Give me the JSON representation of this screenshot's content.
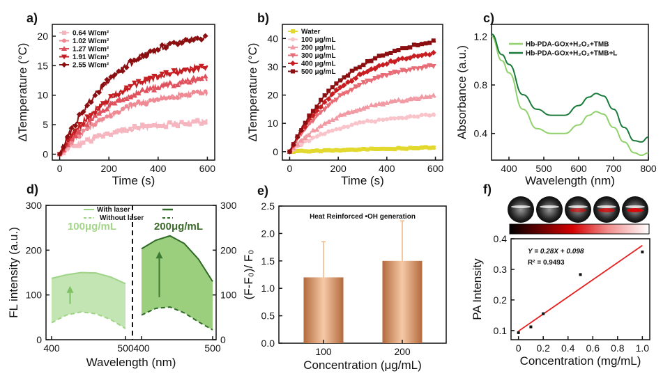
{
  "panels": {
    "a": {
      "label": "a)"
    },
    "b": {
      "label": "b)"
    },
    "c": {
      "label": "c)"
    },
    "d": {
      "label": "d)"
    },
    "e": {
      "label": "e)"
    },
    "f": {
      "label": "f)"
    }
  },
  "chart_data": [
    {
      "id": "a",
      "type": "line",
      "xlabel": "Time (s)",
      "ylabel": "ΔTemperature (°C)",
      "xlim": [
        -30,
        630
      ],
      "ylim": [
        -1,
        22
      ],
      "xticks": [
        0,
        200,
        400,
        600
      ],
      "yticks": [
        0,
        5,
        10,
        15,
        20
      ],
      "series": [
        {
          "name": "0.64 W/cm²",
          "color": "#f6b6bf",
          "values_final": 5.5
        },
        {
          "name": "1.02 W/cm²",
          "color": "#ef8a95",
          "values_final": 10.5
        },
        {
          "name": "1.27 W/cm²",
          "color": "#e0515e",
          "values_final": 12.8
        },
        {
          "name": "1.91 W/cm²",
          "color": "#c41e22",
          "values_final": 14.8
        },
        {
          "name": "2.55 W/cm²",
          "color": "#8b0e10",
          "values_final": 20.0
        }
      ]
    },
    {
      "id": "b",
      "type": "line",
      "xlabel": "Time (s)",
      "ylabel": "ΔTemperature (°C)",
      "xlim": [
        -30,
        630
      ],
      "ylim": [
        -3,
        45
      ],
      "xticks": [
        0,
        200,
        400,
        600
      ],
      "yticks": [
        0,
        10,
        20,
        30,
        40
      ],
      "series": [
        {
          "name": "Water",
          "color": "#e3d92e",
          "values_final": 1.5
        },
        {
          "name": "100 μg/mL",
          "color": "#f9c3ca",
          "values_final": 13
        },
        {
          "name": "200 μg/mL",
          "color": "#f19aa3",
          "values_final": 19.5
        },
        {
          "name": "300 μg/mL",
          "color": "#e86c76",
          "values_final": 30.5
        },
        {
          "name": "400 μg/mL",
          "color": "#c81e22",
          "values_final": 35
        },
        {
          "name": "500 μg/mL",
          "color": "#8b0e10",
          "values_final": 39
        }
      ]
    },
    {
      "id": "c",
      "type": "line",
      "xlabel": "Wavelength (nm)",
      "ylabel": "Absorbance (a.u.)",
      "xlim": [
        350,
        800
      ],
      "ylim": [
        0.18,
        1.3
      ],
      "xticks": [
        400,
        500,
        600,
        700,
        800
      ],
      "yticks": [
        0.4,
        0.8,
        1.2
      ],
      "ytick_labels": [
        "0.4",
        "0.8",
        "1.2"
      ],
      "series": [
        {
          "name": "Hb-PDA-GOx+H₂O₂+TMB",
          "color": "#8fd16a",
          "x": [
            350,
            380,
            400,
            440,
            480,
            520,
            560,
            600,
            630,
            650,
            670,
            700,
            730,
            760,
            780,
            800
          ],
          "y": [
            1.2,
            1.0,
            0.9,
            0.6,
            0.44,
            0.4,
            0.4,
            0.47,
            0.55,
            0.58,
            0.56,
            0.45,
            0.33,
            0.24,
            0.22,
            0.24
          ]
        },
        {
          "name": "Hb-PDA-GOx+H₂O₂+TMB+L",
          "color": "#1a7a3a",
          "x": [
            350,
            380,
            400,
            440,
            480,
            520,
            560,
            600,
            630,
            650,
            670,
            700,
            730,
            760,
            780,
            800
          ],
          "y": [
            1.22,
            1.05,
            0.97,
            0.72,
            0.6,
            0.55,
            0.55,
            0.63,
            0.7,
            0.73,
            0.71,
            0.6,
            0.45,
            0.34,
            0.33,
            0.37
          ]
        }
      ]
    },
    {
      "id": "d",
      "type": "area",
      "xlabel": "Wavelength (nm)",
      "ylabel": "FL intensity (a.u.)",
      "ylim": [
        0,
        300
      ],
      "yticks": [
        0,
        100,
        200,
        300
      ],
      "xticks_left": [
        400,
        500
      ],
      "xticks_right": [
        400,
        500
      ],
      "legend": [
        "With laser",
        "Without laser"
      ],
      "annotations": [
        "100μg/mL",
        "200μg/mL"
      ],
      "left": {
        "x": [
          400,
          420,
          440,
          460,
          480,
          500
        ],
        "with": [
          137,
          145,
          150,
          149,
          140,
          125
        ],
        "without": [
          38,
          55,
          62,
          58,
          45,
          25
        ]
      },
      "right": {
        "x": [
          400,
          420,
          440,
          460,
          480,
          500
        ],
        "with": [
          203,
          222,
          232,
          215,
          180,
          130
        ],
        "without": [
          55,
          70,
          73,
          60,
          40,
          22
        ]
      }
    },
    {
      "id": "e",
      "type": "bar",
      "xlabel": "Concentration (μg/mL)",
      "ylabel": "(F-F₀)/ F₀",
      "title": "Heat Reinforced •OH generation",
      "categories": [
        "100",
        "200"
      ],
      "values": [
        1.2,
        1.5
      ],
      "errors": [
        0.65,
        0.73
      ],
      "ylim": [
        0,
        2.5
      ],
      "yticks": [
        0.0,
        0.5,
        1.0,
        1.5,
        2.0,
        2.5
      ],
      "ytick_labels": [
        "0.0",
        "0.5",
        "1.0",
        "1.5",
        "2.0",
        "2.5"
      ]
    },
    {
      "id": "f",
      "type": "scatter",
      "xlabel": "Concentration (mg/mL)",
      "ylabel": "PA Intensity",
      "x": [
        0,
        0.1,
        0.2,
        0.5,
        1.0
      ],
      "y": [
        0.093,
        0.112,
        0.155,
        0.283,
        0.357
      ],
      "fit": {
        "slope": 0.28,
        "intercept": 0.098
      },
      "equation": "Y = 0.28X + 0.098",
      "r2": "R² = 0.9493",
      "xlim": [
        -0.06,
        1.06
      ],
      "ylim": [
        0.07,
        0.4
      ],
      "xticks": [
        0,
        0.2,
        0.4,
        0.6,
        0.8,
        1.0
      ],
      "xtick_labels": [
        "0",
        "0.2",
        "0.4",
        "0.6",
        "0.8",
        "1.0"
      ],
      "yticks": [
        0.1,
        0.2,
        0.3,
        0.4
      ],
      "ytick_labels": [
        "0.1",
        "0.2",
        "0.3",
        "0.4"
      ]
    }
  ]
}
